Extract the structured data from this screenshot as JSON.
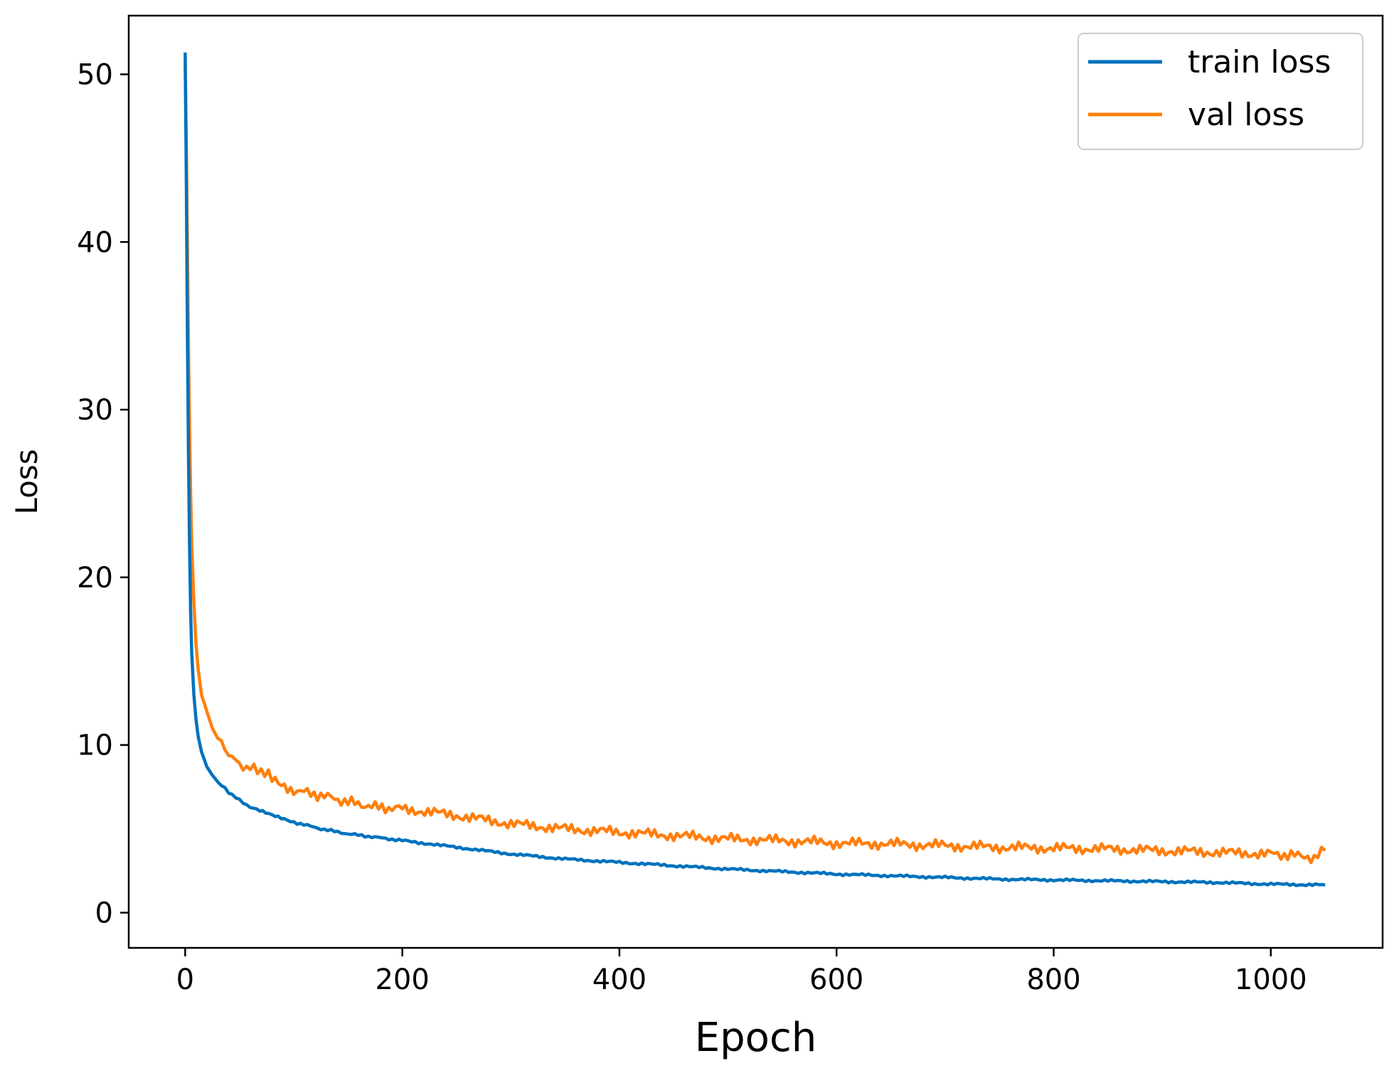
{
  "chart_data": {
    "type": "line",
    "xlabel": "Epoch",
    "ylabel": "Loss",
    "xlim": [
      -52,
      1103
    ],
    "ylim": [
      -2.1,
      53.5
    ],
    "xticks": [
      0,
      200,
      400,
      600,
      800,
      1000
    ],
    "yticks": [
      0,
      10,
      20,
      30,
      40,
      50
    ],
    "grid": false,
    "legend": {
      "position": "top-right"
    },
    "series": [
      {
        "name": "train loss",
        "color": "#0072bd",
        "x": [
          0,
          1,
          2,
          3,
          4,
          5,
          6,
          8,
          10,
          12,
          15,
          20,
          25,
          30,
          40,
          50,
          60,
          80,
          100,
          125,
          150,
          175,
          200,
          250,
          300,
          350,
          400,
          450,
          500,
          550,
          600,
          650,
          700,
          750,
          800,
          850,
          900,
          950,
          1000,
          1050
        ],
        "y": [
          51.3,
          44.0,
          35.0,
          27.5,
          22.0,
          18.0,
          15.5,
          13.0,
          11.5,
          10.5,
          9.6,
          8.7,
          8.2,
          7.8,
          7.2,
          6.7,
          6.3,
          5.8,
          5.4,
          5.0,
          4.7,
          4.5,
          4.3,
          3.9,
          3.5,
          3.2,
          3.0,
          2.8,
          2.6,
          2.45,
          2.3,
          2.2,
          2.1,
          2.0,
          1.95,
          1.9,
          1.85,
          1.8,
          1.7,
          1.65
        ]
      },
      {
        "name": "val loss",
        "color": "#ff7f0e",
        "x": [
          0,
          1,
          2,
          3,
          4,
          5,
          6,
          8,
          10,
          12,
          15,
          20,
          25,
          30,
          40,
          50,
          60,
          70,
          80,
          100,
          125,
          150,
          175,
          200,
          250,
          300,
          350,
          400,
          450,
          500,
          550,
          600,
          650,
          700,
          750,
          800,
          850,
          900,
          950,
          1000,
          1025,
          1040,
          1050
        ],
        "y": [
          50.6,
          46.0,
          40.0,
          34.0,
          29.0,
          25.0,
          22.0,
          18.5,
          16.0,
          14.5,
          13.0,
          12.0,
          11.0,
          10.4,
          9.5,
          8.8,
          8.6,
          8.5,
          8.0,
          7.3,
          7.0,
          6.6,
          6.3,
          6.2,
          5.8,
          5.3,
          5.0,
          4.8,
          4.6,
          4.4,
          4.3,
          4.15,
          4.1,
          4.0,
          3.9,
          3.85,
          3.8,
          3.7,
          3.6,
          3.5,
          3.4,
          3.3,
          3.7
        ]
      }
    ]
  }
}
